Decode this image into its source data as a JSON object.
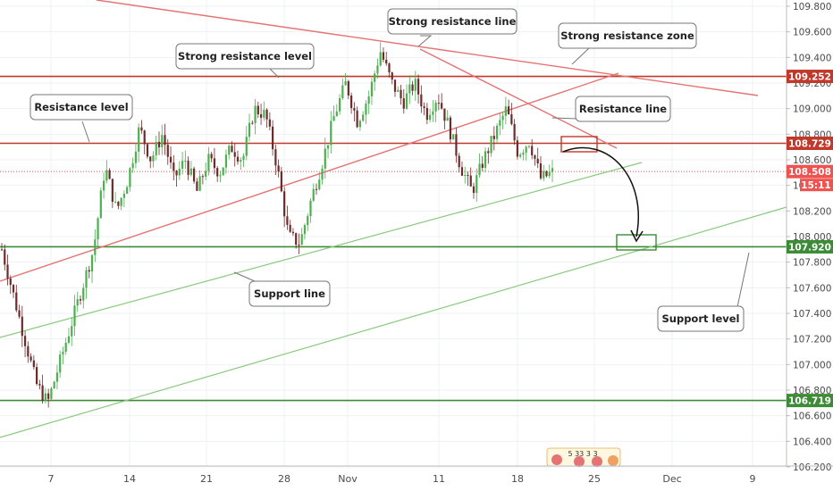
{
  "colors": {
    "resistance": "#c0392b",
    "resistance_line": "#e57373",
    "support": "#3d8b37",
    "support_line": "#8bc97f",
    "candle_up": "#4caf50",
    "candle_down": "#6d2b2b",
    "current": "#ef5350",
    "grid": "#eef1f4"
  },
  "chart_data": {
    "type": "line",
    "title": "",
    "xlabel": "",
    "ylabel": "",
    "ylim": [
      106.2,
      109.85
    ],
    "y_ticks": [
      "106.200",
      "106.400",
      "106.600",
      "106.800",
      "107.000",
      "107.200",
      "107.400",
      "107.600",
      "107.800",
      "108.000",
      "108.200",
      "108.400",
      "108.600",
      "108.800",
      "109.000",
      "109.200",
      "109.400",
      "109.600",
      "109.800"
    ],
    "x_ticks": [
      "7",
      "14",
      "21",
      "28",
      "Nov",
      "11",
      "18",
      "25",
      "Dec",
      "9"
    ],
    "horizontal_levels": [
      {
        "label": "109.252",
        "value": 109.252,
        "kind": "resistance"
      },
      {
        "label": "108.729",
        "value": 108.729,
        "kind": "resistance"
      },
      {
        "label": "107.920",
        "value": 107.92,
        "kind": "support"
      },
      {
        "label": "106.719",
        "value": 106.719,
        "kind": "support"
      }
    ],
    "current_price": {
      "label": "108.508",
      "value": 108.508,
      "countdown": "15:11"
    },
    "price_path": [
      {
        "x": 0,
        "y": 107.9
      },
      {
        "x": 1,
        "y": 107.55
      },
      {
        "x": 2,
        "y": 107.2
      },
      {
        "x": 3,
        "y": 106.85
      },
      {
        "x": 4,
        "y": 106.7
      },
      {
        "x": 5,
        "y": 107.0
      },
      {
        "x": 6,
        "y": 107.3
      },
      {
        "x": 7,
        "y": 107.6
      },
      {
        "x": 8,
        "y": 107.9
      },
      {
        "x": 9,
        "y": 108.55
      },
      {
        "x": 10,
        "y": 108.2
      },
      {
        "x": 11,
        "y": 108.45
      },
      {
        "x": 12,
        "y": 108.85
      },
      {
        "x": 13,
        "y": 108.6
      },
      {
        "x": 14,
        "y": 108.8
      },
      {
        "x": 15,
        "y": 108.45
      },
      {
        "x": 16,
        "y": 108.6
      },
      {
        "x": 17,
        "y": 108.35
      },
      {
        "x": 18,
        "y": 108.6
      },
      {
        "x": 19,
        "y": 108.5
      },
      {
        "x": 20,
        "y": 108.7
      },
      {
        "x": 21,
        "y": 108.6
      },
      {
        "x": 22,
        "y": 109.0
      },
      {
        "x": 23,
        "y": 108.95
      },
      {
        "x": 24,
        "y": 108.55
      },
      {
        "x": 25,
        "y": 108.0
      },
      {
        "x": 26,
        "y": 107.95
      },
      {
        "x": 27,
        "y": 108.3
      },
      {
        "x": 28,
        "y": 108.6
      },
      {
        "x": 29,
        "y": 108.95
      },
      {
        "x": 30,
        "y": 109.2
      },
      {
        "x": 31,
        "y": 108.9
      },
      {
        "x": 32,
        "y": 109.1
      },
      {
        "x": 33,
        "y": 109.45
      },
      {
        "x": 34,
        "y": 109.2
      },
      {
        "x": 35,
        "y": 109.05
      },
      {
        "x": 36,
        "y": 109.2
      },
      {
        "x": 37,
        "y": 108.95
      },
      {
        "x": 38,
        "y": 109.1
      },
      {
        "x": 39,
        "y": 108.85
      },
      {
        "x": 40,
        "y": 108.55
      },
      {
        "x": 41,
        "y": 108.35
      },
      {
        "x": 42,
        "y": 108.6
      },
      {
        "x": 43,
        "y": 108.8
      },
      {
        "x": 44,
        "y": 109.0
      },
      {
        "x": 45,
        "y": 108.65
      },
      {
        "x": 46,
        "y": 108.75
      },
      {
        "x": 47,
        "y": 108.45
      },
      {
        "x": 48,
        "y": 108.5
      }
    ],
    "trend_lines": [
      {
        "label": "Strong resistance line",
        "kind": "resistance"
      },
      {
        "label": "Resistance line",
        "kind": "resistance"
      },
      {
        "label": "Support line",
        "kind": "support"
      }
    ]
  },
  "callouts": {
    "strong_resistance_line": "Strong resistance line",
    "strong_resistance_zone": "Strong resistance zone",
    "strong_resistance_level": "Strong resistance level",
    "resistance_level": "Resistance level",
    "resistance_line": "Resistance line",
    "support_line": "Support line",
    "support_level": "Support level"
  },
  "events_label": "5 33 3 3"
}
